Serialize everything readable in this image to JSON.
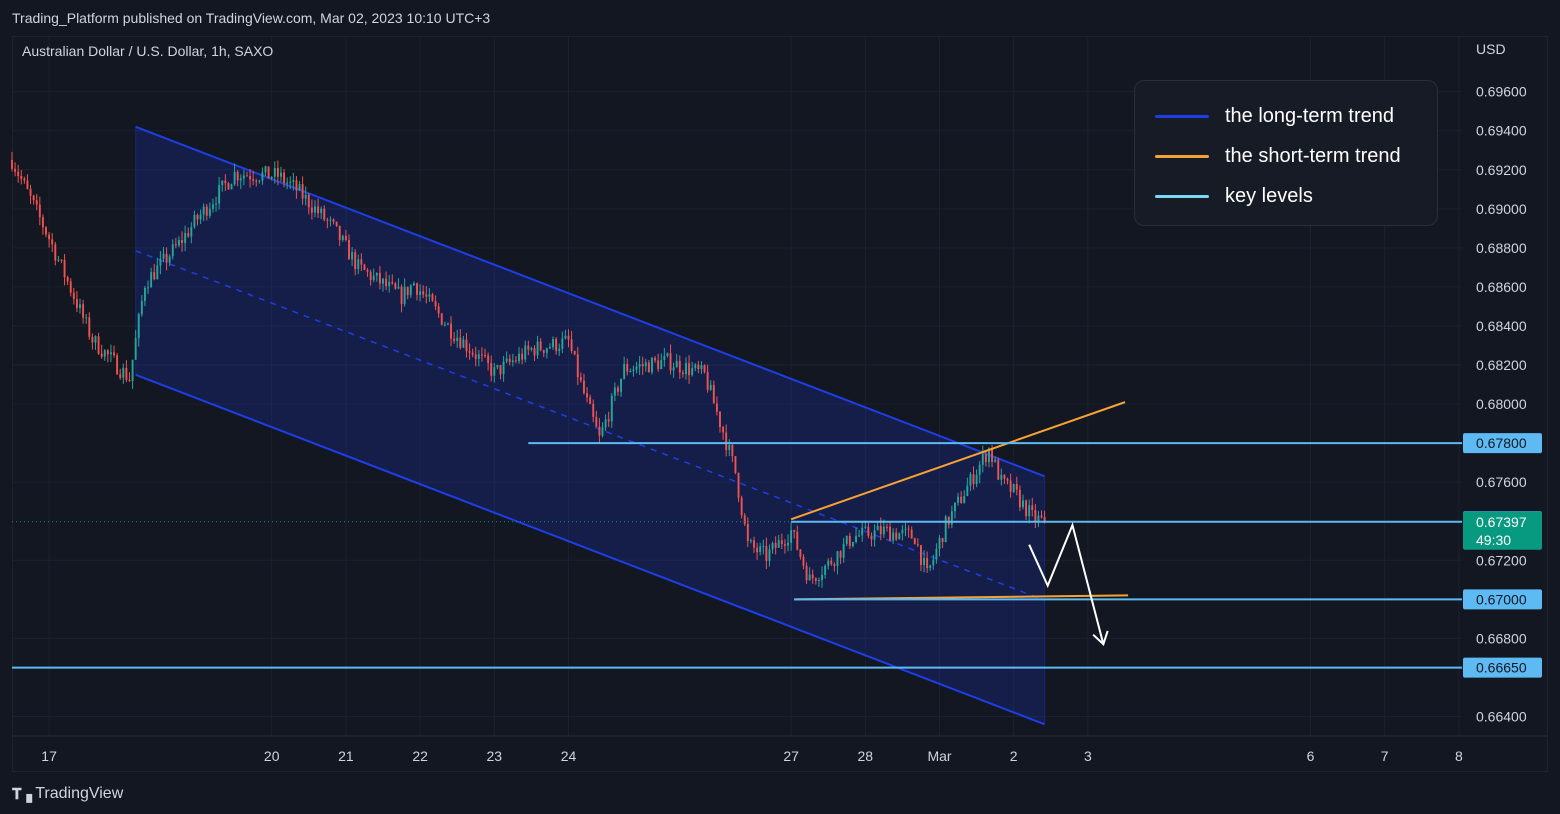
{
  "header": {
    "published": "Trading_Platform published on TradingView.com, Mar 02, 2023 10:10 UTC+3"
  },
  "footer": {
    "brand": "TradingView"
  },
  "chart_data": {
    "type": "candlestick",
    "symbol": "Australian Dollar / U.S. Dollar, 1h, SAXO",
    "currency": "USD",
    "ylim": [
      0.663,
      0.6988
    ],
    "price_ticks": [
      "0.69600",
      "0.69400",
      "0.69200",
      "0.69000",
      "0.68800",
      "0.68600",
      "0.68400",
      "0.68200",
      "0.68000",
      "0.67600",
      "0.67200",
      "0.66800",
      "0.66400"
    ],
    "x_ticks": [
      "17",
      "20",
      "21",
      "22",
      "23",
      "24",
      "27",
      "28",
      "Mar",
      "2",
      "3",
      "6",
      "7",
      "8"
    ],
    "x_tick_hours": [
      0,
      72,
      96,
      120,
      144,
      168,
      240,
      264,
      288,
      312,
      336,
      408,
      432,
      456
    ],
    "xlim_hours": [
      -12,
      457
    ],
    "key_levels": [
      {
        "label": "0.67800",
        "price": 0.678,
        "from_hour": 155
      },
      {
        "label": "0.67400",
        "price": 0.674,
        "from_hour": null
      },
      {
        "label": "0.67000",
        "price": 0.67,
        "from_hour": 241
      },
      {
        "label": "0.66650",
        "price": 0.6665,
        "from_hour": -12
      }
    ],
    "current_price": {
      "label": "0.67397",
      "countdown": "49:30",
      "price": 0.67397
    },
    "channel": {
      "upper": [
        [
          28,
          0.6942
        ],
        [
          322,
          0.6763
        ]
      ],
      "lower": [
        [
          28,
          0.6815
        ],
        [
          322,
          0.6636
        ]
      ],
      "mid": [
        [
          28,
          0.68785
        ],
        [
          322,
          0.66995
        ]
      ]
    },
    "short_term_trend": {
      "upper": [
        [
          240,
          0.6741
        ],
        [
          348,
          0.6801
        ]
      ],
      "lower": [
        [
          241,
          0.67
        ],
        [
          349,
          0.6702
        ]
      ]
    },
    "forecast": [
      [
        317,
        0.6728
      ],
      [
        323,
        0.6707
      ],
      [
        331,
        0.6738
      ],
      [
        341,
        0.6677
      ]
    ],
    "legend": [
      {
        "label": "the long-term trend",
        "color": "#1e3ee6"
      },
      {
        "label": "the short-term trend",
        "color": "#f7a234"
      },
      {
        "label": "key levels",
        "color": "#7ad9f5"
      }
    ],
    "colors": {
      "up": "#26a69a",
      "down": "#ef5350",
      "channel": "#1e3ee6",
      "short_term": "#f7a234",
      "key_level": "#5dbaf3",
      "current": "#089981",
      "background": "#131722"
    },
    "price_path": [
      [
        -12,
        0.6925
      ],
      [
        0,
        0.6885
      ],
      [
        14,
        0.6833
      ],
      [
        26,
        0.6813
      ],
      [
        31,
        0.6862
      ],
      [
        42,
        0.6882
      ],
      [
        48,
        0.6895
      ],
      [
        60,
        0.6918
      ],
      [
        74,
        0.6917
      ],
      [
        80,
        0.691
      ],
      [
        92,
        0.689
      ],
      [
        100,
        0.687
      ],
      [
        114,
        0.6855
      ],
      [
        118,
        0.6862
      ],
      [
        130,
        0.6838
      ],
      [
        144,
        0.6816
      ],
      [
        156,
        0.6828
      ],
      [
        168,
        0.6832
      ],
      [
        172,
        0.681
      ],
      [
        178,
        0.6782
      ],
      [
        186,
        0.6818
      ],
      [
        200,
        0.6822
      ],
      [
        212,
        0.6815
      ],
      [
        218,
        0.6786
      ],
      [
        222,
        0.6765
      ],
      [
        226,
        0.6728
      ],
      [
        232,
        0.6722
      ],
      [
        240,
        0.6735
      ],
      [
        246,
        0.671
      ],
      [
        252,
        0.6718
      ],
      [
        260,
        0.6732
      ],
      [
        270,
        0.6735
      ],
      [
        280,
        0.6732
      ],
      [
        284,
        0.6712
      ],
      [
        290,
        0.6738
      ],
      [
        295,
        0.6752
      ],
      [
        300,
        0.6766
      ],
      [
        304,
        0.6777
      ],
      [
        308,
        0.676
      ],
      [
        312,
        0.6755
      ],
      [
        318,
        0.6742
      ],
      [
        322,
        0.67397
      ]
    ]
  }
}
